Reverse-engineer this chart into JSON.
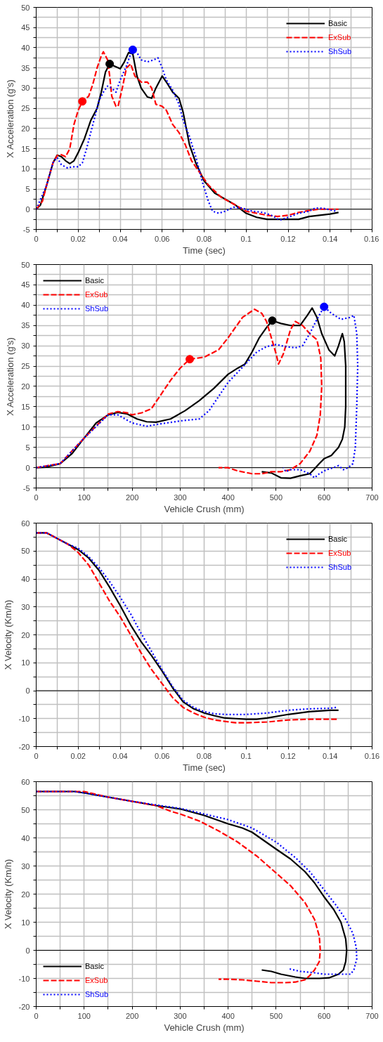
{
  "chart_data": [
    {
      "type": "line",
      "xlabel": "Time (sec)",
      "ylabel": "X Acceleration (g's)",
      "xlim": [
        0,
        0.16
      ],
      "ylim": [
        -5,
        50
      ],
      "xticks": [
        0,
        {
          "value": 0.01,
          "label": null
        },
        0.02,
        {
          "value": 0.03,
          "label": null
        },
        0.04,
        {
          "value": 0.05,
          "label": null
        },
        0.06,
        {
          "value": 0.07,
          "label": null
        },
        0.08,
        {
          "value": 0.09,
          "label": null
        },
        0.1,
        {
          "value": 0.11,
          "label": null
        },
        0.12,
        {
          "value": 0.13,
          "label": null
        },
        0.14,
        {
          "value": 0.15,
          "label": null
        },
        0.16
      ],
      "yticks": [
        -5,
        {
          "value": -2.5,
          "label": null
        },
        0,
        {
          "value": 2.5,
          "label": null
        },
        5,
        {
          "value": 7.5,
          "label": null
        },
        10,
        {
          "value": 12.5,
          "label": null
        },
        15,
        {
          "value": 17.5,
          "label": null
        },
        20,
        {
          "value": 22.5,
          "label": null
        },
        25,
        {
          "value": 27.5,
          "label": null
        },
        30,
        {
          "value": 32.5,
          "label": null
        },
        35,
        {
          "value": 37.5,
          "label": null
        },
        40,
        {
          "value": 42.5,
          "label": null
        },
        45,
        {
          "value": 47.5,
          "label": null
        },
        50
      ],
      "grid": true,
      "legend": "top right",
      "ref_lines": [
        {
          "axis": "y",
          "value": 0,
          "color": "#000000"
        }
      ],
      "series": [
        {
          "name": "Basic",
          "color": "#000000",
          "line_style": "solid",
          "x": [
            0,
            0.002,
            0.005,
            0.008,
            0.01,
            0.012,
            0.014,
            0.016,
            0.018,
            0.02,
            0.023,
            0.026,
            0.029,
            0.031,
            0.033,
            0.035,
            0.037,
            0.04,
            0.042,
            0.044,
            0.046,
            0.048,
            0.05,
            0.053,
            0.055,
            0.057,
            0.06,
            0.062,
            0.065,
            0.068,
            0.07,
            0.073,
            0.076,
            0.08,
            0.085,
            0.09,
            0.095,
            0.1,
            0.105,
            0.11,
            0.117,
            0.122,
            0.125,
            0.13,
            0.135,
            0.14,
            0.144
          ],
          "values": [
            0,
            1,
            6,
            11.5,
            13.4,
            13,
            12,
            11.3,
            12,
            14,
            17.5,
            22,
            25,
            29,
            34,
            36,
            35.5,
            34.8,
            36.5,
            38.8,
            38.5,
            33,
            30,
            27.8,
            27.5,
            30,
            33,
            31.5,
            29,
            27.5,
            24,
            16,
            11.5,
            7,
            4,
            2.5,
            1,
            -1,
            -2,
            -2.5,
            -2.5,
            -2.5,
            -2.5,
            -1.8,
            -1.5,
            -1.2,
            -0.8
          ]
        },
        {
          "name": "ExSub",
          "color": "#ff0000",
          "line_style": "dashed",
          "x": [
            0,
            0.003,
            0.005,
            0.008,
            0.01,
            0.012,
            0.014,
            0.016,
            0.018,
            0.02,
            0.022,
            0.025,
            0.027,
            0.029,
            0.031,
            0.032,
            0.034,
            0.035,
            0.036,
            0.038,
            0.039,
            0.041,
            0.043,
            0.045,
            0.047,
            0.05,
            0.053,
            0.055,
            0.057,
            0.06,
            0.062,
            0.065,
            0.068,
            0.071,
            0.074,
            0.078,
            0.082,
            0.088,
            0.095,
            0.1,
            0.105,
            0.11,
            0.115,
            0.12,
            0.125,
            0.13,
            0.135,
            0.144
          ],
          "values": [
            0,
            2,
            6,
            11.5,
            13.3,
            13.5,
            13,
            15,
            21,
            24.5,
            26.7,
            28,
            31,
            35,
            38,
            39,
            37,
            33,
            28,
            25.5,
            25.5,
            30,
            35,
            36,
            33,
            31.5,
            31.5,
            30,
            26,
            25.5,
            24.5,
            21,
            19,
            16,
            12,
            9,
            6,
            3,
            1,
            -0.5,
            -1,
            -1.5,
            -1.8,
            -1.5,
            -0.8,
            -0.3,
            0,
            0
          ]
        },
        {
          "name": "ShSub",
          "color": "#0000ff",
          "line_style": "dotted",
          "x": [
            0,
            0.005,
            0.008,
            0.01,
            0.012,
            0.015,
            0.017,
            0.02,
            0.022,
            0.024,
            0.026,
            0.028,
            0.03,
            0.032,
            0.034,
            0.036,
            0.038,
            0.04,
            0.043,
            0.045,
            0.046,
            0.048,
            0.05,
            0.053,
            0.056,
            0.058,
            0.06,
            0.062,
            0.065,
            0.068,
            0.07,
            0.073,
            0.076,
            0.079,
            0.082,
            0.084,
            0.087,
            0.09,
            0.094,
            0.098,
            0.103,
            0.108,
            0.112,
            0.116,
            0.12,
            0.125,
            0.13,
            0.133,
            0.137,
            0.143
          ],
          "values": [
            0,
            6,
            11.5,
            12.8,
            11,
            10.2,
            10.5,
            10.5,
            11.5,
            15,
            19,
            23,
            27,
            29,
            30.5,
            30,
            29,
            32,
            35.5,
            38.5,
            39.5,
            38.8,
            37,
            36.5,
            37,
            37.5,
            35,
            32,
            29.5,
            26,
            22,
            18,
            13,
            7,
            2,
            -0.5,
            -1,
            -0.5,
            0.5,
            0.3,
            -0.5,
            -0.8,
            -1.5,
            -2.7,
            -2,
            -1,
            -0.5,
            0.3,
            0.2,
            -0.5
          ]
        },
        {
          "type": "scatter",
          "marker": "circle",
          "color": "#000000",
          "x": [
            0.035
          ],
          "values": [
            36
          ]
        },
        {
          "type": "scatter",
          "marker": "circle",
          "color": "#ff0000",
          "x": [
            0.022
          ],
          "values": [
            26.7
          ]
        },
        {
          "type": "scatter",
          "marker": "circle",
          "color": "#0000ff",
          "x": [
            0.046
          ],
          "values": [
            39.5
          ]
        }
      ]
    },
    {
      "type": "line",
      "xlabel": "Vehicle Crush (mm)",
      "ylabel": "X Acceleration (g's)",
      "xlim": [
        0,
        700
      ],
      "ylim": [
        -5,
        50
      ],
      "xticks": [
        0,
        {
          "value": 50,
          "label": null
        },
        100,
        {
          "value": 150,
          "label": null
        },
        200,
        {
          "value": 250,
          "label": null
        },
        300,
        {
          "value": 350,
          "label": null
        },
        400,
        {
          "value": 450,
          "label": null
        },
        500,
        {
          "value": 550,
          "label": null
        },
        600,
        {
          "value": 650,
          "label": null
        },
        700
      ],
      "yticks": [
        -5,
        {
          "value": -2.5,
          "label": null
        },
        0,
        {
          "value": 2.5,
          "label": null
        },
        5,
        {
          "value": 7.5,
          "label": null
        },
        10,
        {
          "value": 12.5,
          "label": null
        },
        15,
        {
          "value": 17.5,
          "label": null
        },
        20,
        {
          "value": 22.5,
          "label": null
        },
        25,
        {
          "value": 27.5,
          "label": null
        },
        30,
        {
          "value": 32.5,
          "label": null
        },
        35,
        {
          "value": 37.5,
          "label": null
        },
        40,
        {
          "value": 42.5,
          "label": null
        },
        45,
        {
          "value": 47.5,
          "label": null
        },
        50
      ],
      "grid": true,
      "legend": "top left",
      "ref_lines": [
        {
          "axis": "y",
          "value": 0,
          "color": "#000000"
        }
      ],
      "series": [
        {
          "name": "Basic",
          "color": "#000000",
          "line_style": "solid",
          "x": [
            0,
            20,
            50,
            75,
            100,
            125,
            150,
            170,
            190,
            210,
            230,
            250,
            280,
            310,
            340,
            370,
            400,
            420,
            435,
            450,
            465,
            480,
            492,
            510,
            530,
            550,
            565,
            575,
            585,
            595,
            610,
            622,
            630,
            638,
            642,
            645,
            645,
            643,
            638,
            630,
            615,
            600,
            590,
            580,
            570,
            550,
            530,
            510,
            490,
            470
          ],
          "values": [
            0,
            0.1,
            1,
            3.5,
            7.3,
            11,
            13,
            13.6,
            13.2,
            12,
            11.3,
            11.2,
            12,
            14,
            16.5,
            19.5,
            23,
            24.5,
            25.5,
            28.5,
            32,
            34.5,
            36.2,
            35.5,
            35,
            35,
            37.5,
            39.3,
            37,
            33,
            29,
            27.5,
            30,
            33,
            31,
            25,
            15,
            10,
            7,
            5,
            3,
            2.2,
            1,
            -0.3,
            -1.5,
            -2,
            -2.6,
            -2.5,
            -1.3,
            -1
          ]
        },
        {
          "name": "ExSub",
          "color": "#ff0000",
          "line_style": "dashed",
          "x": [
            0,
            50,
            100,
            150,
            170,
            190,
            200,
            220,
            240,
            260,
            280,
            300,
            320,
            350,
            380,
            400,
            430,
            455,
            470,
            480,
            490,
            500,
            505,
            515,
            530,
            540,
            555,
            570,
            585,
            593,
            595,
            592,
            585,
            570,
            550,
            530,
            510,
            490,
            470,
            450,
            420,
            400,
            380
          ],
          "values": [
            0,
            1,
            7.3,
            13.2,
            13.8,
            13.5,
            13,
            13.5,
            14.5,
            18,
            21.5,
            24.5,
            26.7,
            27.2,
            29,
            32,
            37,
            39,
            38,
            36,
            32,
            28,
            25.5,
            28,
            34,
            36,
            35,
            33,
            31.5,
            27,
            20,
            13,
            8,
            4,
            1,
            -0.5,
            -1,
            -1,
            -1.5,
            -1.5,
            -0.8,
            0,
            0
          ]
        },
        {
          "name": "ShSub",
          "color": "#0000ff",
          "line_style": "dotted",
          "x": [
            0,
            50,
            100,
            150,
            170,
            200,
            230,
            260,
            300,
            340,
            360,
            380,
            400,
            420,
            440,
            460,
            480,
            500,
            520,
            540,
            555,
            570,
            585,
            600,
            615,
            635,
            655,
            662,
            668,
            670,
            668,
            665,
            660,
            650,
            640,
            630,
            620,
            605,
            590,
            580,
            570,
            550,
            530,
            520,
            515
          ],
          "values": [
            0,
            1,
            7.3,
            13,
            13,
            11,
            10.2,
            10.8,
            11.5,
            12,
            14,
            17.5,
            21,
            23.5,
            26,
            28.5,
            29.8,
            30.3,
            29.8,
            29.5,
            30,
            33,
            36.5,
            39.6,
            38,
            36.5,
            37,
            37.5,
            33,
            25,
            15,
            5,
            1,
            0,
            -0.5,
            0.5,
            0,
            -0.5,
            -1.5,
            -2.5,
            -1.5,
            -0.5,
            -0.5,
            -1,
            0
          ]
        },
        {
          "type": "scatter",
          "marker": "circle",
          "color": "#000000",
          "x": [
            492
          ],
          "values": [
            36.2
          ]
        },
        {
          "type": "scatter",
          "marker": "circle",
          "color": "#ff0000",
          "x": [
            320
          ],
          "values": [
            26.7
          ]
        },
        {
          "type": "scatter",
          "marker": "circle",
          "color": "#0000ff",
          "x": [
            600
          ],
          "values": [
            39.6
          ]
        }
      ]
    },
    {
      "type": "line",
      "xlabel": "Time (sec)",
      "ylabel": "X Velocity (Km/h)",
      "xlim": [
        0,
        0.16
      ],
      "ylim": [
        -20,
        60
      ],
      "xticks": [
        0,
        {
          "value": 0.01,
          "label": null
        },
        0.02,
        {
          "value": 0.03,
          "label": null
        },
        0.04,
        {
          "value": 0.05,
          "label": null
        },
        0.06,
        {
          "value": 0.07,
          "label": null
        },
        0.08,
        {
          "value": 0.09,
          "label": null
        },
        0.1,
        {
          "value": 0.11,
          "label": null
        },
        0.12,
        {
          "value": 0.13,
          "label": null
        },
        0.14,
        {
          "value": 0.15,
          "label": null
        },
        0.16
      ],
      "yticks": [
        -20,
        {
          "value": -15,
          "label": null
        },
        -10,
        {
          "value": -5,
          "label": null
        },
        0,
        {
          "value": 5,
          "label": null
        },
        10,
        {
          "value": 15,
          "label": null
        },
        20,
        {
          "value": 25,
          "label": null
        },
        30,
        {
          "value": 35,
          "label": null
        },
        40,
        {
          "value": 45,
          "label": null
        },
        50,
        {
          "value": 55,
          "label": null
        },
        60
      ],
      "grid": true,
      "legend": "top right",
      "ref_lines": [
        {
          "axis": "y",
          "value": 0,
          "color": "#000000"
        }
      ],
      "series": [
        {
          "name": "Basic",
          "color": "#000000",
          "line_style": "solid",
          "x": [
            0,
            0.005,
            0.01,
            0.015,
            0.02,
            0.025,
            0.03,
            0.035,
            0.04,
            0.045,
            0.05,
            0.055,
            0.06,
            0.065,
            0.07,
            0.075,
            0.08,
            0.085,
            0.09,
            0.095,
            0.1,
            0.105,
            0.11,
            0.12,
            0.13,
            0.14,
            0.144
          ],
          "values": [
            56.5,
            56.5,
            54.5,
            52.5,
            50.5,
            47.5,
            43,
            37,
            30.5,
            23.5,
            17.5,
            12.5,
            7,
            1,
            -4,
            -6.5,
            -8,
            -9,
            -9.8,
            -10,
            -10.2,
            -10.2,
            -9.8,
            -8.5,
            -7.5,
            -7,
            -7
          ]
        },
        {
          "name": "ExSub",
          "color": "#ff0000",
          "line_style": "dashed",
          "x": [
            0,
            0.005,
            0.01,
            0.015,
            0.02,
            0.025,
            0.03,
            0.035,
            0.04,
            0.045,
            0.05,
            0.055,
            0.06,
            0.065,
            0.07,
            0.075,
            0.08,
            0.085,
            0.09,
            0.095,
            0.1,
            0.11,
            0.12,
            0.13,
            0.144
          ],
          "values": [
            56.5,
            56.5,
            54.5,
            52.5,
            49.5,
            45,
            38.5,
            32,
            26.5,
            20,
            13.5,
            7.5,
            2.5,
            -2.5,
            -6,
            -8,
            -9.5,
            -10.5,
            -11,
            -11.5,
            -11.5,
            -11.2,
            -10.5,
            -10.2,
            -10.2
          ]
        },
        {
          "name": "ShSub",
          "color": "#0000ff",
          "line_style": "dotted",
          "x": [
            0,
            0.005,
            0.01,
            0.015,
            0.02,
            0.025,
            0.03,
            0.035,
            0.04,
            0.045,
            0.05,
            0.055,
            0.06,
            0.065,
            0.07,
            0.075,
            0.08,
            0.085,
            0.09,
            0.1,
            0.11,
            0.12,
            0.13,
            0.14,
            0.143
          ],
          "values": [
            56.5,
            56.5,
            54.5,
            52.5,
            51,
            48,
            44,
            39,
            33.5,
            27.5,
            20.5,
            14,
            7.5,
            1.5,
            -3.5,
            -6,
            -7.5,
            -8.3,
            -8.5,
            -8.5,
            -8,
            -7,
            -6.5,
            -6.3,
            -6
          ]
        }
      ]
    },
    {
      "type": "line",
      "xlabel": "Vehicle Crush (mm)",
      "ylabel": "X Velocity (Km/h)",
      "xlim": [
        0,
        700
      ],
      "ylim": [
        -20,
        60
      ],
      "xticks": [
        0,
        {
          "value": 50,
          "label": null
        },
        100,
        {
          "value": 150,
          "label": null
        },
        200,
        {
          "value": 250,
          "label": null
        },
        300,
        {
          "value": 350,
          "label": null
        },
        400,
        {
          "value": 450,
          "label": null
        },
        500,
        {
          "value": 550,
          "label": null
        },
        600,
        {
          "value": 650,
          "label": null
        },
        700
      ],
      "yticks": [
        -20,
        {
          "value": -15,
          "label": null
        },
        -10,
        {
          "value": -5,
          "label": null
        },
        0,
        {
          "value": 5,
          "label": null
        },
        10,
        {
          "value": 15,
          "label": null
        },
        20,
        {
          "value": 25,
          "label": null
        },
        30,
        {
          "value": 35,
          "label": null
        },
        40,
        {
          "value": 45,
          "label": null
        },
        50,
        {
          "value": 55,
          "label": null
        },
        60
      ],
      "grid": true,
      "legend": "bottom left",
      "ref_lines": [
        {
          "axis": "y",
          "value": 0,
          "color": "#000000"
        }
      ],
      "series": [
        {
          "name": "Basic",
          "color": "#000000",
          "line_style": "solid",
          "x": [
            0,
            80,
            100,
            150,
            200,
            250,
            300,
            350,
            400,
            430,
            450,
            500,
            530,
            560,
            580,
            600,
            620,
            635,
            645,
            647,
            645,
            640,
            630,
            610,
            590,
            560,
            540,
            510,
            490,
            470
          ],
          "values": [
            56.5,
            56.5,
            56,
            54.5,
            53,
            51.5,
            50.3,
            48,
            45,
            43.5,
            42,
            36,
            32.5,
            28,
            24,
            19,
            14.5,
            10,
            4,
            0,
            -4,
            -7,
            -8.5,
            -9.8,
            -10,
            -10,
            -9.5,
            -8.5,
            -7.5,
            -7
          ]
        },
        {
          "name": "ExSub",
          "color": "#ff0000",
          "line_style": "dashed",
          "x": [
            0,
            100,
            150,
            200,
            250,
            280,
            300,
            340,
            380,
            420,
            460,
            500,
            530,
            560,
            580,
            590,
            592,
            590,
            580,
            570,
            560,
            540,
            520,
            490,
            460,
            430,
            400,
            380
          ],
          "values": [
            56.5,
            56.5,
            54.5,
            53,
            51.5,
            49.5,
            48.5,
            46,
            42.5,
            38.5,
            33.5,
            27.5,
            23,
            17,
            11,
            5,
            0,
            -4,
            -7,
            -9,
            -10.5,
            -11.3,
            -11.5,
            -11.5,
            -11,
            -10.5,
            -10.3,
            -10.3
          ]
        },
        {
          "name": "ShSub",
          "color": "#0000ff",
          "line_style": "dotted",
          "x": [
            0,
            80,
            100,
            150,
            200,
            250,
            300,
            350,
            400,
            450,
            500,
            540,
            570,
            600,
            625,
            645,
            660,
            667,
            668,
            662,
            655,
            640,
            620,
            600,
            580,
            550,
            525
          ],
          "values": [
            56.5,
            56.5,
            56,
            54.5,
            53,
            51.7,
            50.5,
            48.5,
            46.5,
            43.5,
            38.5,
            33,
            28,
            21.5,
            16,
            11,
            6,
            1,
            -3,
            -7,
            -8.5,
            -8.5,
            -8.5,
            -8.5,
            -8,
            -7.5,
            -6.5
          ]
        }
      ]
    }
  ]
}
